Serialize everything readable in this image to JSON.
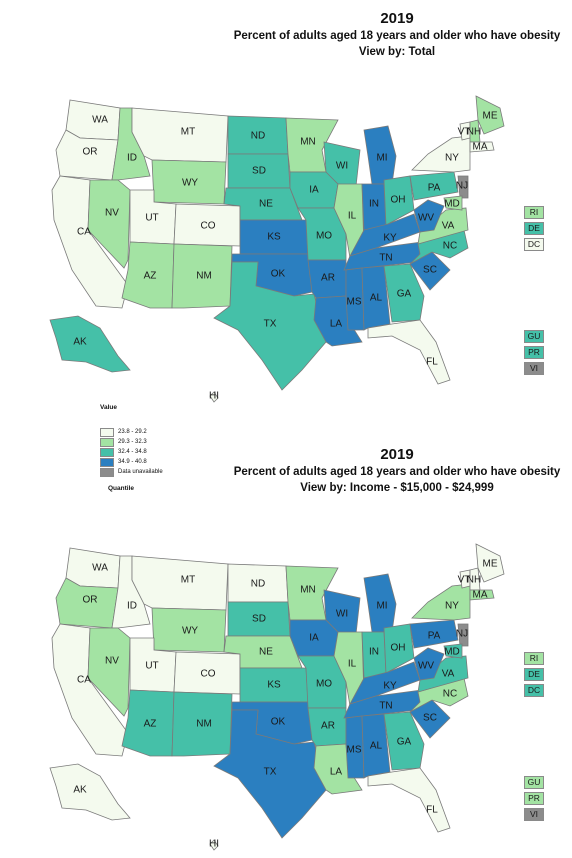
{
  "legend": {
    "title": "Value",
    "footer": "Quantile",
    "items": [
      {
        "label": "23.8 - 29.2",
        "color": "#f4faee"
      },
      {
        "label": "29.3 - 32.3",
        "color": "#a3e3a3"
      },
      {
        "label": "32.4 - 34.8",
        "color": "#45c0a8"
      },
      {
        "label": "34.9 - 40.8",
        "color": "#2b7fc0"
      },
      {
        "label": "Data unavailable",
        "color": "#8c8c8c"
      }
    ]
  },
  "maps": [
    {
      "year": "2019",
      "subtitle": "Percent of adults aged 18 years and older who have obesity",
      "view": "View by: Total",
      "states": {
        "WA": 0,
        "OR": 0,
        "CA": 0,
        "ID": 1,
        "NV": 1,
        "MT": 0,
        "WY": 1,
        "UT": 0,
        "CO": 0,
        "AZ": 1,
        "NM": 1,
        "ND": 2,
        "SD": 2,
        "NE": 2,
        "KS": 3,
        "OK": 3,
        "TX": 2,
        "MN": 1,
        "IA": 2,
        "MO": 2,
        "AR": 3,
        "LA": 3,
        "WI": 2,
        "IL": 1,
        "MI": 3,
        "IN": 3,
        "OH": 2,
        "KY": 3,
        "TN": 3,
        "MS": 3,
        "AL": 3,
        "GA": 2,
        "FL": 0,
        "SC": 3,
        "NC": 2,
        "VA": 1,
        "WV": 3,
        "PA": 2,
        "NY": 0,
        "VT": 0,
        "NH": 1,
        "ME": 1,
        "MA": 0,
        "NJ": 4,
        "MD": 1,
        "AK": 2,
        "HI": 0
      },
      "boxes": [
        {
          "code": "RI",
          "q": 1
        },
        {
          "code": "DE",
          "q": 2
        },
        {
          "code": "DC",
          "q": 0
        },
        {
          "code": "GU",
          "q": 2
        },
        {
          "code": "PR",
          "q": 2
        },
        {
          "code": "VI",
          "q": 4
        }
      ]
    },
    {
      "year": "2019",
      "subtitle": "Percent of adults aged 18 years and older who have obesity",
      "view": "View by: Income - $15,000 - $24,999",
      "states": {
        "WA": 0,
        "OR": 1,
        "CA": 0,
        "ID": 0,
        "NV": 1,
        "MT": 0,
        "WY": 1,
        "UT": 0,
        "CO": 0,
        "AZ": 2,
        "NM": 2,
        "ND": 0,
        "SD": 2,
        "NE": 1,
        "KS": 2,
        "OK": 3,
        "TX": 3,
        "MN": 1,
        "IA": 3,
        "MO": 2,
        "AR": 2,
        "LA": 1,
        "WI": 3,
        "IL": 1,
        "MI": 3,
        "IN": 2,
        "OH": 2,
        "KY": 3,
        "TN": 3,
        "MS": 3,
        "AL": 3,
        "GA": 2,
        "FL": 0,
        "SC": 3,
        "NC": 1,
        "VA": 2,
        "WV": 3,
        "PA": 3,
        "NY": 1,
        "VT": 0,
        "NH": 0,
        "ME": 0,
        "MA": 1,
        "NJ": 4,
        "MD": 2,
        "AK": 0,
        "HI": 0
      },
      "boxes": [
        {
          "code": "RI",
          "q": 1
        },
        {
          "code": "DE",
          "q": 2
        },
        {
          "code": "DC",
          "q": 2
        },
        {
          "code": "GU",
          "q": 1
        },
        {
          "code": "PR",
          "q": 1
        },
        {
          "code": "VI",
          "q": 4
        }
      ]
    }
  ]
}
